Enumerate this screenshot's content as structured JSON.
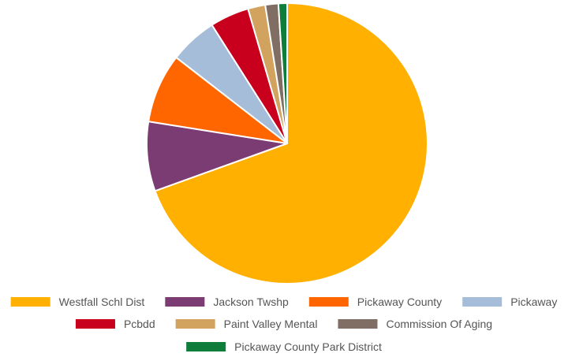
{
  "chart_data": {
    "type": "pie",
    "title": "",
    "legend_position": "bottom",
    "slices": [
      {
        "label": "Westfall Schl Dist",
        "value": 69.5,
        "color": "#FFB000"
      },
      {
        "label": "Jackson Twshp",
        "value": 8.0,
        "color": "#7B3B73"
      },
      {
        "label": "Pickaway County",
        "value": 8.0,
        "color": "#FF6600"
      },
      {
        "label": "Pickaway",
        "value": 5.5,
        "color": "#A5BDD9"
      },
      {
        "label": "Pcbdd",
        "value": 4.5,
        "color": "#C8001E"
      },
      {
        "label": "Paint Valley Mental",
        "value": 2.0,
        "color": "#D1A35F"
      },
      {
        "label": "Commission Of Aging",
        "value": 1.5,
        "color": "#806D63"
      },
      {
        "label": "Pickaway County Park District",
        "value": 1.0,
        "color": "#0E7C3A"
      }
    ]
  }
}
